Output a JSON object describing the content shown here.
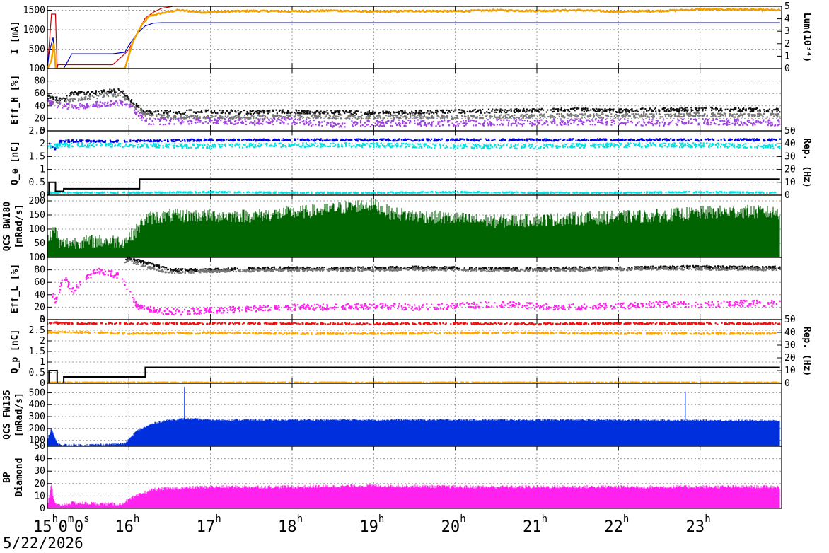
{
  "date_label": "5/22/2026",
  "time_axis": {
    "start_hour": 15,
    "end_hour": 24,
    "labels": [
      {
        "h": 15,
        "main": "15",
        "sup": "h",
        "tail": "0",
        "sup2": "m",
        "tail2": "0",
        "sup3": "s"
      },
      {
        "h": 16,
        "main": "16",
        "sup": "h"
      },
      {
        "h": 17,
        "main": "17",
        "sup": "h"
      },
      {
        "h": 18,
        "main": "18",
        "sup": "h"
      },
      {
        "h": 19,
        "main": "19",
        "sup": "h"
      },
      {
        "h": 20,
        "main": "20",
        "sup": "h"
      },
      {
        "h": 21,
        "main": "21",
        "sup": "h"
      },
      {
        "h": 22,
        "main": "22",
        "sup": "h"
      },
      {
        "h": 23,
        "main": "23",
        "sup": "h"
      }
    ]
  },
  "chart_data": [
    {
      "id": "current",
      "type": "line",
      "ylabel": "I [mA]",
      "y2label": "Lum(10³⁴)",
      "ylim": [
        0,
        1600
      ],
      "yticks": [
        "0",
        "500",
        "1000",
        "1500"
      ],
      "yticks_vals": [
        0,
        500,
        1000,
        1500
      ],
      "y2lim": [
        0,
        5
      ],
      "y2ticks": [
        "0",
        "1",
        "2",
        "3",
        "4",
        "5"
      ],
      "y2ticks_vals": [
        0,
        1,
        2,
        3,
        4,
        5
      ],
      "series": [
        {
          "color": "#cc0000",
          "style": "line",
          "x": [
            15.0,
            15.05,
            15.1,
            15.12,
            15.13,
            15.15,
            15.8,
            15.95,
            16.0,
            16.1,
            16.2,
            16.3,
            16.4,
            16.6,
            17.0,
            18.0,
            19.0,
            20.0,
            21.0,
            22.0,
            23.0,
            23.98
          ],
          "y": [
            0,
            1400,
            1400,
            0,
            100,
            100,
            100,
            380,
            500,
            900,
            1300,
            1450,
            1550,
            1620,
            1620,
            1620,
            1620,
            1620,
            1620,
            1620,
            1620,
            1620
          ]
        },
        {
          "color": "#0000cc",
          "style": "line",
          "x": [
            15.0,
            15.02,
            15.07,
            15.1,
            15.12,
            15.2,
            15.3,
            15.8,
            15.95,
            16.0,
            16.1,
            16.2,
            16.3,
            16.4,
            17.0,
            18.0,
            19.0,
            20.0,
            21.0,
            22.0,
            23.0,
            23.98
          ],
          "y": [
            0,
            400,
            800,
            0,
            0,
            0,
            380,
            380,
            420,
            600,
            900,
            1100,
            1170,
            1180,
            1180,
            1180,
            1180,
            1180,
            1180,
            1180,
            1180,
            1180
          ]
        },
        {
          "color": "#f0a000",
          "style": "noisy",
          "x": [
            15.0,
            15.05,
            15.08,
            15.1,
            15.12,
            15.95,
            16.05,
            16.15,
            16.25,
            16.35,
            16.45,
            16.6,
            16.9,
            17.5,
            18.0,
            18.5,
            19.0,
            19.5,
            20.0,
            20.5,
            21.0,
            21.5,
            22.0,
            22.5,
            23.0,
            23.5,
            23.98
          ],
          "y": [
            0,
            200,
            700,
            0,
            0,
            0,
            700,
            1100,
            1350,
            1400,
            1450,
            1500,
            1450,
            1480,
            1470,
            1490,
            1460,
            1480,
            1470,
            1500,
            1480,
            1500,
            1460,
            1480,
            1520,
            1520,
            1500
          ],
          "noise": 20
        }
      ]
    },
    {
      "id": "effh",
      "type": "scatter",
      "ylabel": "Eff_H [%]",
      "ylim": [
        0,
        100
      ],
      "yticks": [
        "0",
        "20",
        "40",
        "60",
        "80",
        "100"
      ],
      "yticks_vals": [
        0,
        20,
        40,
        60,
        80,
        100
      ],
      "series": [
        {
          "color": "#111111",
          "x": [
            15.0,
            15.2,
            15.3,
            15.6,
            15.9,
            16.05,
            16.2,
            16.5,
            17.0,
            17.5,
            18.0,
            18.5,
            19.0,
            19.5,
            20.0,
            20.5,
            21.0,
            21.5,
            22.0,
            22.5,
            23.0,
            23.5,
            23.98
          ],
          "y": [
            55,
            50,
            60,
            62,
            65,
            45,
            30,
            30,
            31,
            30,
            31,
            30,
            29,
            30,
            31,
            32,
            33,
            34,
            32,
            34,
            35,
            34,
            33
          ],
          "noise": 3
        },
        {
          "color": "#777777",
          "x": [
            15.0,
            15.2,
            15.3,
            15.6,
            15.9,
            16.05,
            16.2,
            16.5,
            17.0,
            17.5,
            18.0,
            18.5,
            19.0,
            19.5,
            20.0,
            20.5,
            21.0,
            21.5,
            22.0,
            22.5,
            23.0,
            23.5,
            23.98
          ],
          "y": [
            45,
            45,
            50,
            55,
            58,
            40,
            25,
            22,
            23,
            22,
            24,
            23,
            22,
            23,
            22,
            23,
            24,
            25,
            24,
            25,
            26,
            25,
            25
          ],
          "noise": 3
        },
        {
          "color": "#a040e0",
          "x": [
            15.0,
            15.2,
            15.3,
            15.6,
            15.9,
            16.05,
            16.2,
            16.5,
            17.0,
            17.5,
            18.0,
            18.5,
            19.0,
            19.5,
            20.0,
            20.5,
            21.0,
            21.5,
            22.0,
            22.5,
            23.0,
            23.5,
            23.98
          ],
          "y": [
            45,
            40,
            38,
            42,
            45,
            35,
            15,
            15,
            17,
            14,
            16,
            10,
            12,
            13,
            12,
            14,
            13,
            15,
            14,
            13,
            15,
            14,
            13
          ],
          "noise": 5
        }
      ]
    },
    {
      "id": "qe",
      "type": "scatter",
      "ylabel": "Q_e [nC]",
      "y2label": "Rep. (Hz)",
      "ylim": [
        0,
        2.5
      ],
      "yticks": [
        "0",
        "0.5",
        "1",
        "1.5",
        "2",
        "2.5"
      ],
      "yticks_vals": [
        0,
        0.5,
        1,
        1.5,
        2,
        2.5
      ],
      "y2lim": [
        0,
        50
      ],
      "y2ticks": [
        "0",
        "10",
        "20",
        "30",
        "40",
        "50"
      ],
      "y2ticks_vals": [
        0,
        10,
        20,
        30,
        40,
        50
      ],
      "series": [
        {
          "color": "#0000dd",
          "x": [
            15.0,
            15.1,
            15.15,
            16.0,
            17.0,
            18.0,
            19.0,
            20.0,
            21.0,
            22.0,
            23.0,
            23.98
          ],
          "y": [
            2.1,
            1.8,
            2.1,
            2.1,
            2.15,
            2.15,
            2.15,
            2.15,
            2.15,
            2.15,
            2.15,
            2.15
          ],
          "noise": 0.04
        },
        {
          "color": "#00e0e0",
          "x": [
            15.0,
            15.1,
            15.15,
            16.0,
            17.0,
            18.0,
            19.0,
            20.0,
            21.0,
            22.0,
            23.0,
            23.98
          ],
          "y": [
            1.9,
            1.9,
            1.95,
            1.95,
            1.9,
            1.95,
            1.95,
            1.9,
            1.9,
            1.95,
            1.95,
            1.9
          ],
          "noise": 0.08
        },
        {
          "color": "#00e0e0",
          "x": [
            15.0,
            16.0,
            17.0,
            18.0,
            19.0,
            20.0,
            21.0,
            22.0,
            23.0,
            23.98
          ],
          "y": [
            0.1,
            0.1,
            0.12,
            0.1,
            0.1,
            0.12,
            0.1,
            0.1,
            0.12,
            0.1
          ],
          "noise": 0.02
        }
      ],
      "rep_step": {
        "color": "#000000",
        "x": [
          15.0,
          15.02,
          15.02,
          15.1,
          15.1,
          15.2,
          15.2,
          16.13,
          16.13,
          23.98
        ],
        "y": [
          0,
          0,
          10,
          10,
          3,
          3,
          5,
          5,
          12.5,
          12.5
        ]
      }
    },
    {
      "id": "qcs_bw",
      "type": "area",
      "ylabel": "QCS BW180",
      "ylabel2": "[mRad/s]",
      "ylim": [
        0,
        220
      ],
      "yticks": [
        "0",
        "50",
        "100",
        "150",
        "200"
      ],
      "yticks_vals": [
        0,
        50,
        100,
        150,
        200
      ],
      "series": [
        {
          "color": "#006400",
          "x": [
            15.0,
            15.1,
            15.15,
            15.5,
            15.95,
            16.1,
            16.2,
            16.5,
            17.0,
            17.5,
            18.0,
            18.4,
            18.8,
            19.0,
            19.2,
            19.5,
            20.0,
            20.5,
            21.0,
            21.5,
            22.0,
            22.5,
            23.0,
            23.5,
            23.98
          ],
          "y": [
            60,
            90,
            40,
            50,
            50,
            90,
            130,
            140,
            140,
            140,
            150,
            160,
            175,
            180,
            150,
            140,
            130,
            120,
            125,
            130,
            135,
            140,
            150,
            155,
            150
          ],
          "noise": 35
        }
      ]
    },
    {
      "id": "effl",
      "type": "scatter",
      "ylabel": "Eff_L [%]",
      "ylim": [
        0,
        100
      ],
      "yticks": [
        "0",
        "20",
        "40",
        "60",
        "80",
        "100"
      ],
      "yticks_vals": [
        0,
        20,
        40,
        60,
        80,
        100
      ],
      "series": [
        {
          "color": "#111111",
          "x": [
            15.95,
            16.0,
            16.2,
            16.5,
            17.0,
            17.5,
            18.0,
            18.5,
            19.0,
            19.5,
            20.0,
            20.5,
            21.0,
            21.5,
            22.0,
            22.5,
            23.0,
            23.5,
            23.98
          ],
          "y": [
            95,
            98,
            92,
            80,
            80,
            82,
            83,
            82,
            83,
            84,
            83,
            82,
            82,
            83,
            83,
            84,
            85,
            84,
            84
          ],
          "noise": 2
        },
        {
          "color": "#777777",
          "x": [
            15.95,
            16.0,
            16.2,
            16.5,
            17.0,
            17.5,
            18.0,
            18.5,
            19.0,
            19.5,
            20.0,
            20.5,
            21.0,
            21.5,
            22.0,
            22.5,
            23.0,
            23.5,
            23.98
          ],
          "y": [
            92,
            95,
            85,
            76,
            78,
            79,
            80,
            80,
            80,
            81,
            80,
            79,
            80,
            80,
            81,
            82,
            82,
            81,
            81
          ],
          "noise": 2
        },
        {
          "color": "#ff22ee",
          "x": [
            15.0,
            15.1,
            15.2,
            15.3,
            15.6,
            15.9,
            16.1,
            16.3,
            16.6,
            17.0,
            17.5,
            18.0,
            18.5,
            19.0,
            19.5,
            20.0,
            20.5,
            21.0,
            21.5,
            22.0,
            22.5,
            23.0,
            23.5,
            23.98
          ],
          "y": [
            60,
            30,
            70,
            45,
            80,
            70,
            20,
            15,
            12,
            15,
            18,
            20,
            20,
            22,
            20,
            22,
            25,
            22,
            20,
            22,
            25,
            24,
            26,
            26
          ],
          "noise": 5
        }
      ]
    },
    {
      "id": "qp",
      "type": "scatter",
      "ylabel": "Q_p [nC]",
      "y2label": "Rep. (Hz)",
      "ylim": [
        0,
        3
      ],
      "yticks": [
        "0",
        "0.5",
        "1",
        "1.5",
        "2",
        "2.5",
        "3"
      ],
      "yticks_vals": [
        0,
        0.5,
        1,
        1.5,
        2,
        2.5,
        3
      ],
      "y2lim": [
        0,
        50
      ],
      "y2ticks": [
        "0",
        "10",
        "20",
        "30",
        "40",
        "50"
      ],
      "y2ticks_vals": [
        0,
        10,
        20,
        30,
        40,
        50
      ],
      "series": [
        {
          "color": "#ee1111",
          "x": [
            15.0,
            15.5,
            16.0,
            17.0,
            18.0,
            19.0,
            20.0,
            21.0,
            22.0,
            23.0,
            23.98
          ],
          "y": [
            2.85,
            2.82,
            2.82,
            2.82,
            2.82,
            2.8,
            2.82,
            2.8,
            2.82,
            2.82,
            2.82
          ],
          "noise": 0.04
        },
        {
          "color": "#ffa500",
          "x": [
            15.0,
            15.5,
            16.0,
            17.0,
            18.0,
            19.0,
            20.0,
            21.0,
            22.0,
            23.0,
            23.98
          ],
          "y": [
            2.4,
            2.4,
            2.35,
            2.38,
            2.35,
            2.35,
            2.38,
            2.38,
            2.35,
            2.35,
            2.35
          ],
          "noise": 0.04
        },
        {
          "color": "#ffa500",
          "x": [
            15.0,
            16.0,
            17.0,
            18.0,
            19.0,
            20.0,
            21.0,
            22.0,
            23.0,
            23.98
          ],
          "y": [
            0.04,
            0.04,
            0.04,
            0.04,
            0.04,
            0.04,
            0.04,
            0.04,
            0.04,
            0.04
          ],
          "noise": 0.01
        }
      ],
      "rep_step": {
        "color": "#000000",
        "x": [
          15.0,
          15.02,
          15.02,
          15.12,
          15.12,
          15.2,
          15.2,
          16.2,
          16.2,
          23.98
        ],
        "y": [
          0,
          0,
          10,
          10,
          0,
          0,
          5,
          5,
          12.5,
          12.5
        ]
      }
    },
    {
      "id": "qcs_fw",
      "type": "area",
      "ylabel": "QCS FW135",
      "ylabel2": "[mRad/s]",
      "ylim": [
        50,
        580
      ],
      "yticks": [
        "50",
        "100",
        "200",
        "300",
        "400",
        "500"
      ],
      "yticks_vals": [
        50,
        100,
        200,
        300,
        400,
        500
      ],
      "series": [
        {
          "color": "#0030dd",
          "x": [
            15.0,
            15.05,
            15.1,
            15.15,
            15.5,
            15.95,
            16.1,
            16.3,
            16.5,
            16.7,
            17.0,
            18.0,
            19.0,
            20.0,
            21.0,
            22.0,
            23.0,
            23.98
          ],
          "y": [
            100,
            200,
            100,
            60,
            60,
            70,
            180,
            240,
            270,
            280,
            270,
            270,
            270,
            270,
            270,
            270,
            265,
            265
          ],
          "noise": 12
        }
      ],
      "spikes": [
        {
          "x": 16.68,
          "y": 550
        },
        {
          "x": 22.82,
          "y": 510
        }
      ]
    },
    {
      "id": "bp_diamond",
      "type": "area",
      "ylabel": "BP",
      "ylabel2": "Diamond",
      "ylim": [
        0,
        50
      ],
      "yticks": [
        "0",
        "10",
        "20",
        "30",
        "40"
      ],
      "yticks_vals": [
        0,
        10,
        20,
        30,
        40
      ],
      "series": [
        {
          "color": "#ff22ee",
          "x": [
            15.0,
            15.05,
            15.08,
            15.12,
            15.3,
            15.9,
            16.1,
            16.3,
            16.6,
            17.0,
            18.0,
            19.0,
            20.0,
            21.0,
            22.0,
            23.0,
            23.98
          ],
          "y": [
            0,
            20,
            5,
            2,
            4,
            3,
            10,
            15,
            16,
            17,
            17,
            18,
            17,
            17,
            17,
            17,
            17
          ],
          "noise": 2
        }
      ]
    }
  ]
}
